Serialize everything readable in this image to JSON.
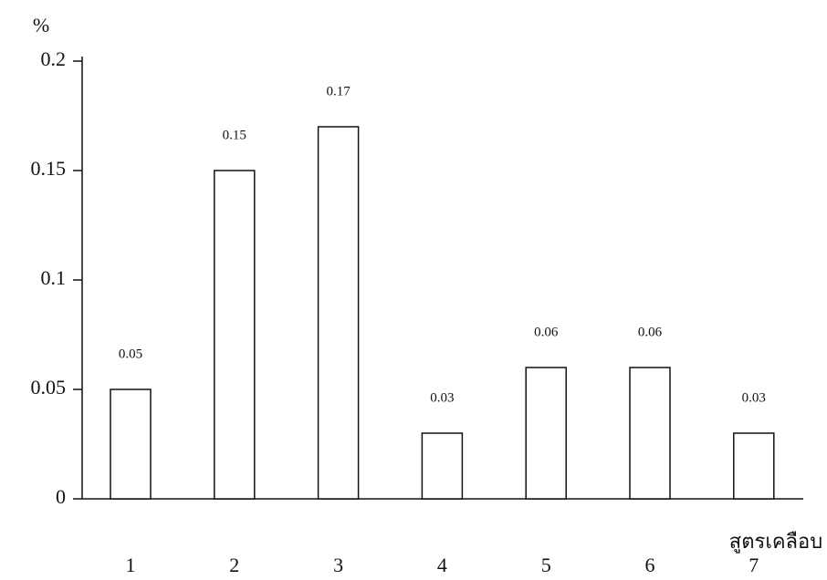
{
  "chart_data": {
    "type": "bar",
    "ylabel": "%",
    "xlabel": "สูตรเคลือบ",
    "categories": [
      "1",
      "2",
      "3",
      "4",
      "5",
      "6",
      "7"
    ],
    "values": [
      0.05,
      0.15,
      0.17,
      0.03,
      0.06,
      0.06,
      0.03
    ],
    "color": "#ffffff",
    "ylim": [
      0,
      0.2
    ],
    "yticks": [
      0,
      0.05,
      0.1,
      0.15,
      0.2
    ],
    "grid": false
  }
}
